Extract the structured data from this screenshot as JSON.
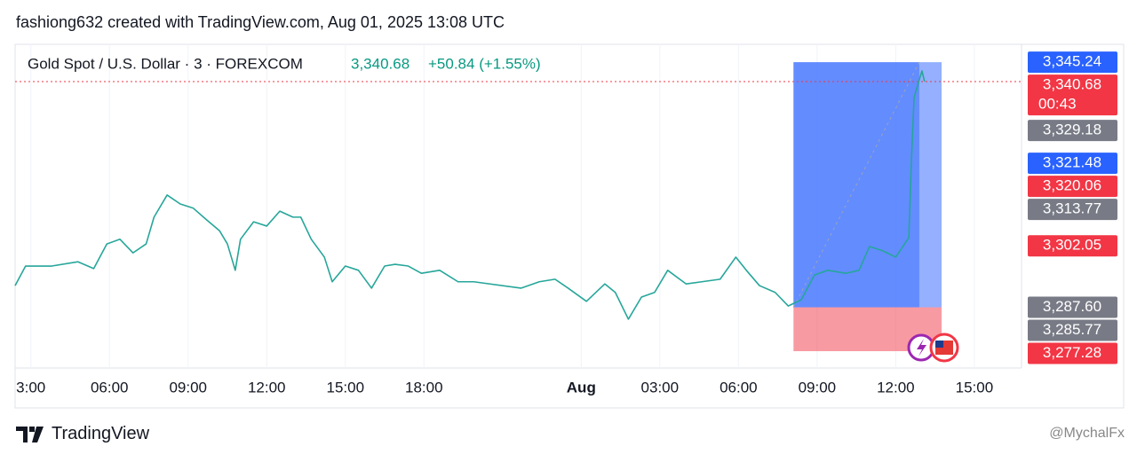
{
  "header": "fashiong632 created with TradingView.com, Aug 01, 2025 13:08 UTC",
  "footer": {
    "brand": "TradingView",
    "watermark": "@MychalFx"
  },
  "chart_data": {
    "type": "line",
    "title": "Gold Spot / U.S. Dollar · 3 · FOREXCOM",
    "last_price": "3,340.68",
    "change": "+50.84 (+1.55%)",
    "x": [
      2.4,
      2.8,
      3.8,
      4.8,
      5.4,
      5.9,
      6.4,
      6.9,
      7.4,
      7.7,
      8.2,
      8.7,
      9.2,
      9.7,
      10.2,
      10.5,
      10.8,
      11.0,
      11.5,
      12.0,
      12.5,
      13.0,
      13.3,
      13.7,
      14.2,
      14.5,
      15.0,
      15.5,
      16.0,
      16.5,
      16.9,
      17.4,
      17.9,
      18.6,
      19.3,
      19.9,
      21.7,
      22.4,
      23.0,
      23.5,
      24.2,
      24.9,
      25.3,
      25.8,
      26.3,
      26.8,
      27.3,
      28.0,
      28.6,
      29.3,
      29.9,
      30.3,
      30.8,
      31.4,
      31.9,
      32.4,
      32.9,
      33.4,
      34.1,
      34.6,
      35.0,
      35.5,
      36.0,
      36.5,
      36.6,
      36.7,
      36.9,
      37.0,
      37.1
    ],
    "series": [
      {
        "name": "XAUUSD",
        "color": "#26a69a",
        "values": [
          3292.7,
          3297.3,
          3297.3,
          3298.3,
          3296.7,
          3302.5,
          3303.6,
          3300.4,
          3302.5,
          3308.8,
          3314.0,
          3311.9,
          3310.9,
          3308.2,
          3305.6,
          3302.5,
          3296.3,
          3303.6,
          3307.7,
          3306.7,
          3310.2,
          3308.8,
          3308.8,
          3303.6,
          3299.4,
          3293.6,
          3297.3,
          3296.3,
          3292.1,
          3297.3,
          3297.7,
          3297.3,
          3295.6,
          3296.3,
          3293.6,
          3293.6,
          3292.1,
          3293.6,
          3294.2,
          3292.1,
          3289.0,
          3293.1,
          3291.1,
          3284.8,
          3290.0,
          3291.1,
          3296.3,
          3293.1,
          3293.6,
          3294.2,
          3299.4,
          3296.3,
          3292.7,
          3291.1,
          3287.9,
          3289.4,
          3295.2,
          3296.3,
          3295.6,
          3296.3,
          3301.9,
          3300.9,
          3299.4,
          3304.0,
          3322.3,
          3336.9,
          3341.1,
          3343.2,
          3340.7
        ]
      }
    ],
    "xlim": [
      2.4,
      40.8
    ],
    "xticks": [
      {
        "value": 3,
        "label": "3:00"
      },
      {
        "value": 6,
        "label": "06:00"
      },
      {
        "value": 9,
        "label": "09:00"
      },
      {
        "value": 12,
        "label": "12:00"
      },
      {
        "value": 15,
        "label": "15:00"
      },
      {
        "value": 18,
        "label": "18:00"
      },
      {
        "value": 24,
        "label": "Aug"
      },
      {
        "value": 27,
        "label": "03:00"
      },
      {
        "value": 30,
        "label": "06:00"
      },
      {
        "value": 33,
        "label": "09:00"
      },
      {
        "value": 36,
        "label": "12:00"
      },
      {
        "value": 39,
        "label": "15:00"
      }
    ],
    "ylim": [
      3273.32,
      3349.44
    ],
    "grid": true,
    "position": {
      "start": 32.1,
      "end": 37.75,
      "now": 36.9,
      "entry": 3287.6,
      "target": 3345.24,
      "stop": 3277.28
    },
    "current_price": 3340.68,
    "price_labels": [
      {
        "value": 3345.24,
        "label": "3,345.24",
        "color": "#2962ff"
      },
      {
        "value": 3340.68,
        "label": "3,340.68",
        "color": "#f23645",
        "countdown": "00:43"
      },
      {
        "value": 3329.18,
        "label": "3,329.18",
        "color": "#787b86"
      },
      {
        "value": 3321.48,
        "label": "3,321.48",
        "color": "#2962ff"
      },
      {
        "value": 3320.06,
        "label": "3,320.06",
        "color": "#f23645"
      },
      {
        "value": 3313.77,
        "label": "3,313.77",
        "color": "#787b86"
      },
      {
        "value": 3302.05,
        "label": "3,302.05",
        "color": "#f23645"
      },
      {
        "value": 3287.6,
        "label": "3,287.60",
        "color": "#787b86"
      },
      {
        "value": 3285.77,
        "label": "3,285.77",
        "color": "#787b86"
      },
      {
        "value": 3277.28,
        "label": "3,277.28",
        "color": "#f23645"
      }
    ]
  }
}
